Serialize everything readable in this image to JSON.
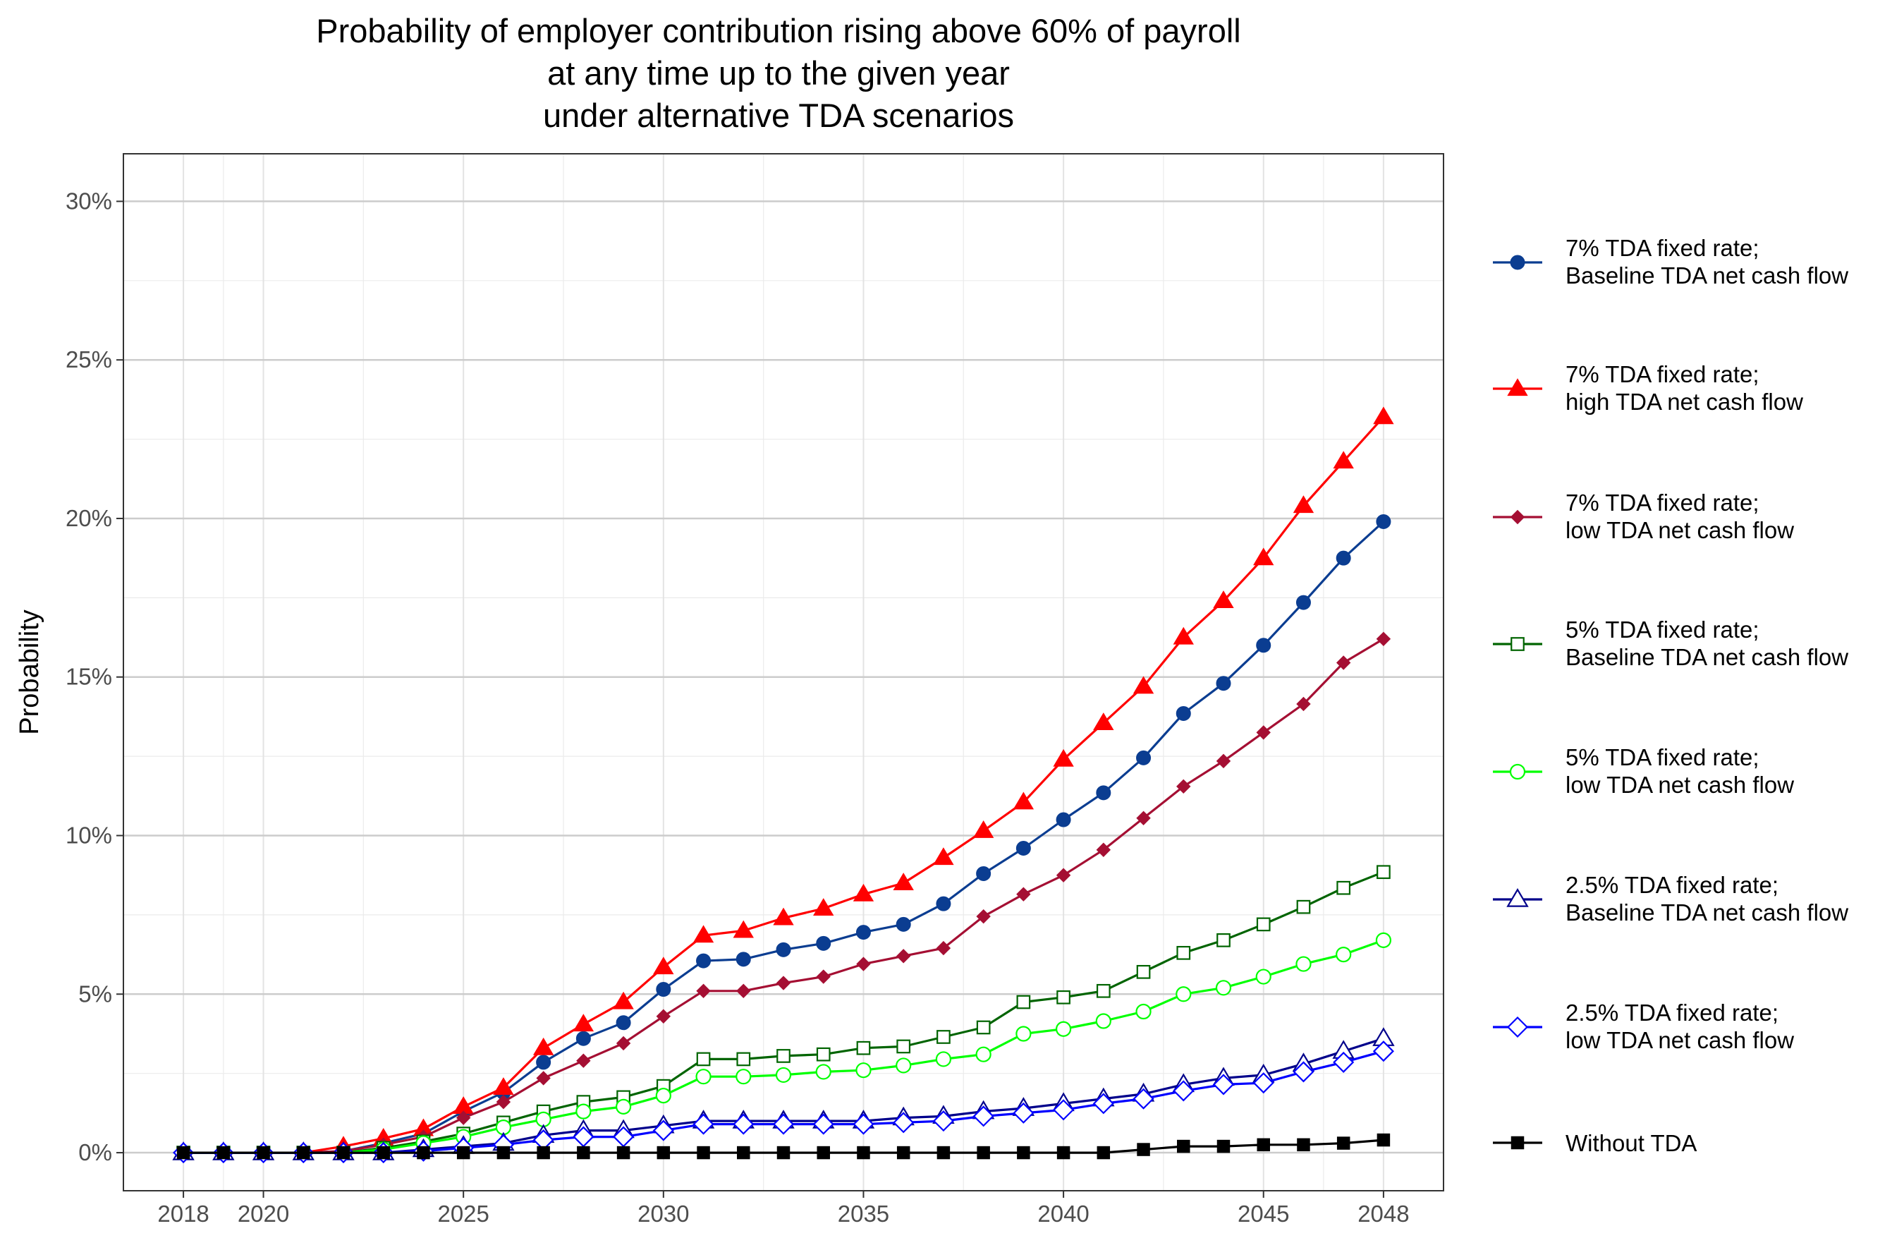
{
  "chart_data": {
    "type": "line",
    "title": [
      "Probability of employer contribution rising above 60% of payroll",
      "at any time up to the given year",
      "under alternative TDA scenarios"
    ],
    "xlabel": "",
    "ylabel": "Probability",
    "xlim": [
      2016.5,
      2049.5
    ],
    "ylim": [
      -1.2,
      31.5
    ],
    "x_ticks": [
      {
        "value": 2018,
        "label": "2018"
      },
      {
        "value": 2020,
        "label": "2020"
      },
      {
        "value": 2025,
        "label": "2025"
      },
      {
        "value": 2030,
        "label": "2030"
      },
      {
        "value": 2035,
        "label": "2035"
      },
      {
        "value": 2040,
        "label": "2040"
      },
      {
        "value": 2045,
        "label": "2045"
      },
      {
        "value": 2048,
        "label": "2048"
      }
    ],
    "y_ticks": [
      {
        "value": 0,
        "label": "0%"
      },
      {
        "value": 5,
        "label": "5%"
      },
      {
        "value": 10,
        "label": "10%"
      },
      {
        "value": 15,
        "label": "15%"
      },
      {
        "value": 20,
        "label": "20%"
      },
      {
        "value": 25,
        "label": "25%"
      },
      {
        "value": 30,
        "label": "30%"
      }
    ],
    "grid": true,
    "legend_position": "right",
    "x": [
      2018,
      2019,
      2020,
      2021,
      2022,
      2023,
      2024,
      2025,
      2026,
      2027,
      2028,
      2029,
      2030,
      2031,
      2032,
      2033,
      2034,
      2035,
      2036,
      2037,
      2038,
      2039,
      2040,
      2041,
      2042,
      2043,
      2044,
      2045,
      2046,
      2047,
      2048
    ],
    "series": [
      {
        "name_lines": [
          "7% TDA fixed rate;",
          "Baseline TDA net cash flow"
        ],
        "color": "#0b3d91",
        "marker": "circle",
        "values": [
          0,
          0,
          0,
          0,
          0.05,
          0.3,
          0.6,
          1.3,
          1.9,
          2.85,
          3.6,
          4.1,
          5.15,
          6.05,
          6.1,
          6.4,
          6.6,
          6.95,
          7.2,
          7.85,
          8.8,
          9.6,
          10.5,
          11.35,
          12.45,
          13.85,
          14.8,
          16.0,
          17.35,
          18.75,
          19.9
        ]
      },
      {
        "name_lines": [
          "7% TDA fixed rate;",
          "high TDA net cash flow"
        ],
        "color": "#ff0000",
        "marker": "triangle",
        "values": [
          0,
          0,
          0,
          0,
          0.2,
          0.45,
          0.75,
          1.45,
          2.05,
          3.3,
          4.05,
          4.75,
          5.85,
          6.85,
          7.0,
          7.4,
          7.7,
          8.15,
          8.5,
          9.3,
          10.15,
          11.05,
          12.4,
          13.55,
          14.7,
          16.25,
          17.4,
          18.75,
          20.4,
          21.8,
          23.2
        ]
      },
      {
        "name_lines": [
          "7% TDA fixed rate;",
          "low  TDA net cash flow"
        ],
        "color": "#a50f33",
        "marker": "diamond-filled",
        "values": [
          0,
          0,
          0,
          0,
          0.05,
          0.25,
          0.5,
          1.1,
          1.6,
          2.35,
          2.9,
          3.45,
          4.3,
          5.1,
          5.1,
          5.35,
          5.55,
          5.95,
          6.2,
          6.45,
          7.45,
          8.15,
          8.75,
          9.55,
          10.55,
          11.55,
          12.35,
          13.25,
          14.15,
          15.45,
          16.2
        ]
      },
      {
        "name_lines": [
          "5% TDA fixed rate;",
          "Baseline TDA net cash flow"
        ],
        "color": "#006400",
        "marker": "square-open",
        "values": [
          0,
          0,
          0,
          0,
          0,
          0.15,
          0.35,
          0.6,
          0.95,
          1.3,
          1.6,
          1.75,
          2.1,
          2.95,
          2.95,
          3.05,
          3.1,
          3.3,
          3.35,
          3.65,
          3.95,
          4.75,
          4.9,
          5.1,
          5.7,
          6.3,
          6.7,
          7.2,
          7.75,
          8.35,
          8.85
        ]
      },
      {
        "name_lines": [
          "5% TDA fixed rate;",
          "low TDA net cash flow"
        ],
        "color": "#00ff00",
        "marker": "circle-open",
        "values": [
          0,
          0,
          0,
          0,
          0,
          0.1,
          0.3,
          0.5,
          0.8,
          1.05,
          1.3,
          1.45,
          1.8,
          2.4,
          2.4,
          2.45,
          2.55,
          2.6,
          2.75,
          2.95,
          3.1,
          3.75,
          3.9,
          4.15,
          4.45,
          5.0,
          5.2,
          5.55,
          5.95,
          6.25,
          6.7
        ]
      },
      {
        "name_lines": [
          "2.5% TDA fixed rate;",
          "Baseline TDA net cash flow"
        ],
        "color": "#00008b",
        "marker": "triangle-open",
        "values": [
          0,
          0,
          0,
          0,
          0,
          0,
          0.1,
          0.2,
          0.3,
          0.55,
          0.7,
          0.7,
          0.85,
          1.0,
          1.0,
          1.0,
          1.0,
          1.0,
          1.1,
          1.15,
          1.3,
          1.4,
          1.55,
          1.7,
          1.85,
          2.15,
          2.35,
          2.45,
          2.8,
          3.2,
          3.6
        ]
      },
      {
        "name_lines": [
          "2.5% TDA fixed rate;",
          "low TDA net cash flow"
        ],
        "color": "#0000ff",
        "marker": "diamond-open",
        "values": [
          0,
          0,
          0,
          0,
          0,
          0,
          0.05,
          0.15,
          0.25,
          0.4,
          0.5,
          0.5,
          0.7,
          0.9,
          0.9,
          0.9,
          0.9,
          0.9,
          0.95,
          1.0,
          1.15,
          1.25,
          1.35,
          1.55,
          1.7,
          1.95,
          2.15,
          2.2,
          2.55,
          2.85,
          3.2
        ]
      },
      {
        "name_lines": [
          "Without TDA"
        ],
        "color": "#000000",
        "marker": "square",
        "values": [
          0,
          0,
          0,
          0,
          0,
          0,
          0,
          0,
          0,
          0,
          0,
          0,
          0,
          0,
          0,
          0,
          0,
          0,
          0,
          0,
          0,
          0,
          0,
          0,
          0.1,
          0.2,
          0.2,
          0.25,
          0.25,
          0.3,
          0.4
        ]
      }
    ]
  }
}
